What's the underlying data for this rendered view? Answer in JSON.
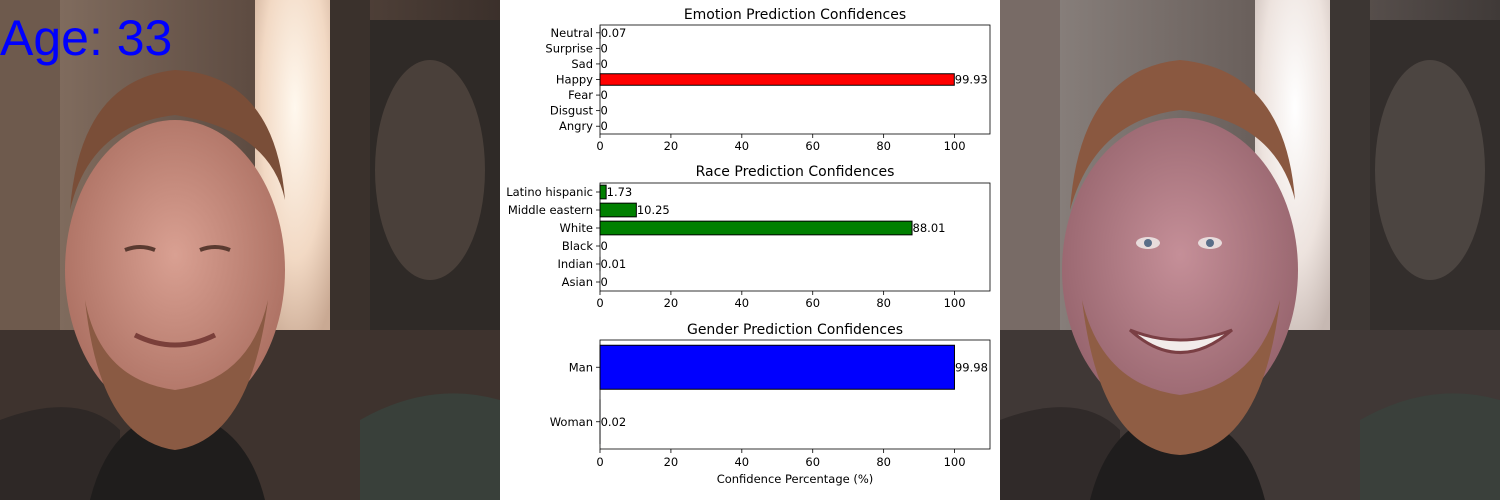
{
  "overlay": {
    "age_text": "Age: 33",
    "age_color": "#0000ff"
  },
  "chart_data": [
    {
      "type": "bar",
      "orientation": "horizontal",
      "title": "Emotion Prediction Confidences",
      "categories": [
        "Angry",
        "Disgust",
        "Fear",
        "Happy",
        "Sad",
        "Surprise",
        "Neutral"
      ],
      "values": [
        0,
        0,
        0,
        99.93,
        0,
        0,
        0.07
      ],
      "value_labels": [
        "0",
        "0",
        "0",
        "99.93",
        "0",
        "0",
        "0.07"
      ],
      "bar_color": "#ff0000",
      "xlim": [
        0,
        110
      ],
      "xticks": [
        0,
        20,
        40,
        60,
        80,
        100
      ],
      "xlabel": ""
    },
    {
      "type": "bar",
      "orientation": "horizontal",
      "title": "Race Prediction Confidences",
      "categories": [
        "Asian",
        "Indian",
        "Black",
        "White",
        "Middle eastern",
        "Latino hispanic"
      ],
      "values": [
        0,
        0.01,
        0,
        88.01,
        10.25,
        1.73
      ],
      "value_labels": [
        "0",
        "0.01",
        "0",
        "88.01",
        "10.25",
        "1.73"
      ],
      "bar_color": "#008000",
      "xlim": [
        0,
        110
      ],
      "xticks": [
        0,
        20,
        40,
        60,
        80,
        100
      ],
      "xlabel": ""
    },
    {
      "type": "bar",
      "orientation": "horizontal",
      "title": "Gender Prediction Confidences",
      "categories": [
        "Woman",
        "Man"
      ],
      "values": [
        0.02,
        99.98
      ],
      "value_labels": [
        "0.02",
        "99.98"
      ],
      "bar_color": "#0000ff",
      "xlim": [
        0,
        110
      ],
      "xticks": [
        0,
        20,
        40,
        60,
        80,
        100
      ],
      "xlabel": "Confidence Percentage (%)"
    }
  ]
}
